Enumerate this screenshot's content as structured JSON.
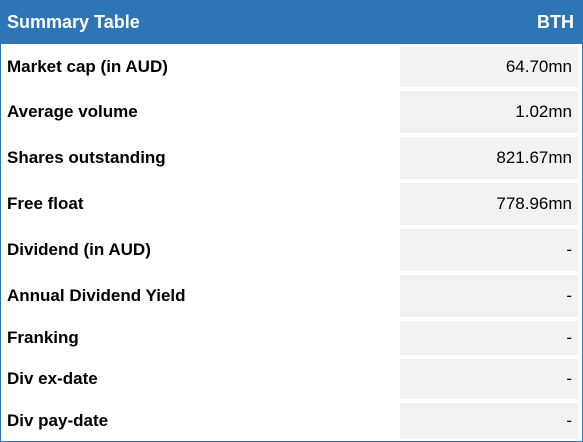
{
  "table": {
    "title": "Summary Table",
    "ticker": "BTH",
    "rows": [
      [
        "Market cap (in AUD)",
        "64.70mn"
      ],
      [
        "Average volume",
        "1.02mn"
      ],
      [
        "Shares outstanding",
        "821.67mn"
      ],
      [
        "Free float",
        "778.96mn"
      ],
      [
        "Dividend (in AUD)",
        "-"
      ],
      [
        "Annual Dividend Yield",
        "-"
      ],
      [
        "Franking",
        "-"
      ],
      [
        "Div ex-date",
        "-"
      ],
      [
        "Div pay-date",
        "-"
      ]
    ]
  }
}
